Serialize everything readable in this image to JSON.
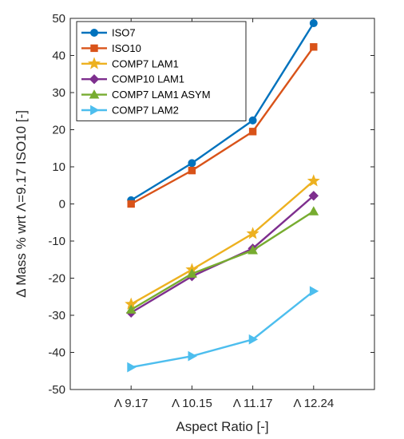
{
  "chart_data": {
    "type": "line",
    "title": "",
    "xlabel": "Aspect Ratio [-]",
    "ylabel": "Δ Mass % wrt Λ=9.17 ISO10 [-]",
    "categories": [
      "Λ 9.17",
      "Λ 10.15",
      "Λ 11.17",
      "Λ 12.24"
    ],
    "ylim": [
      -50,
      50
    ],
    "yticks": [
      -50,
      -40,
      -30,
      -20,
      -10,
      0,
      10,
      20,
      30,
      40,
      50
    ],
    "grid": false,
    "legend_position": "top-left",
    "series": [
      {
        "name": "ISO7",
        "color": "#0072BD",
        "marker": "circle",
        "values": [
          1,
          11,
          22.5,
          48.7
        ]
      },
      {
        "name": "ISO10",
        "color": "#D95319",
        "marker": "square",
        "values": [
          0,
          9,
          19.5,
          42.3
        ]
      },
      {
        "name": "COMP7 LAM1",
        "color": "#EDB120",
        "marker": "star",
        "values": [
          -27,
          -17.7,
          -8,
          6.2
        ]
      },
      {
        "name": "COMP10 LAM1",
        "color": "#7E2F8E",
        "marker": "diamond",
        "values": [
          -29.3,
          -19.5,
          -12,
          2.2
        ]
      },
      {
        "name": "COMP7 LAM1 ASYM",
        "color": "#77AC30",
        "marker": "triangle-up",
        "values": [
          -28.5,
          -18.8,
          -12.5,
          -2
        ]
      },
      {
        "name": "COMP7 LAM2",
        "color": "#4DBEEE",
        "marker": "triangle-right",
        "values": [
          -44,
          -41,
          -36.5,
          -23.5
        ]
      }
    ]
  }
}
